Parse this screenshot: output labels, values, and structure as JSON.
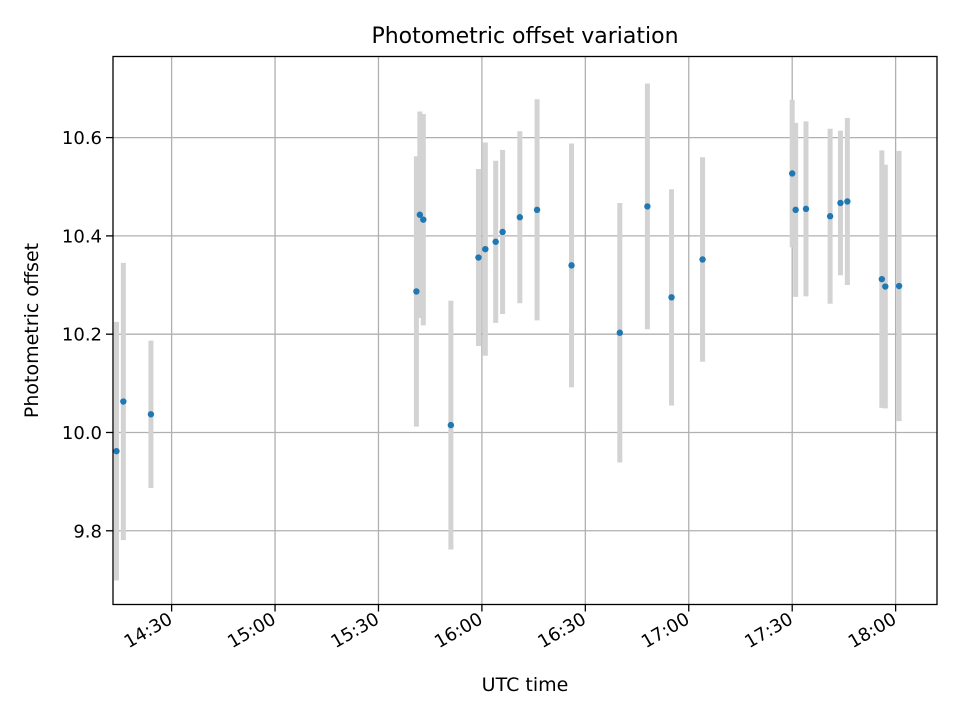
{
  "chart_data": {
    "type": "scatter",
    "title": "Photometric offset variation",
    "xlabel": "UTC time",
    "ylabel": "Photometric offset",
    "grid": true,
    "x_tick_labels": [
      "14:30",
      "15:00",
      "15:30",
      "16:00",
      "16:30",
      "17:00",
      "17:30",
      "18:00"
    ],
    "y_tick_labels": [
      "9.8",
      "10.0",
      "10.2",
      "10.4",
      "10.6"
    ],
    "xlim": [
      "14:13",
      "18:12"
    ],
    "ylim": [
      9.65,
      10.765
    ],
    "colors": {
      "point": "#1f77b4",
      "errorbar": "#d3d3d3",
      "grid": "#b0b0b0"
    },
    "series": [
      {
        "points": [
          {
            "x": "14:14",
            "y": 9.962,
            "yerr": 0.263
          },
          {
            "x": "14:16",
            "y": 10.063,
            "yerr": 0.282
          },
          {
            "x": "14:24",
            "y": 10.037,
            "yerr": 0.15
          },
          {
            "x": "15:41",
            "y": 10.287,
            "yerr": 0.275
          },
          {
            "x": "15:42",
            "y": 10.443,
            "yerr": 0.21
          },
          {
            "x": "15:43",
            "y": 10.433,
            "yerr": 0.215
          },
          {
            "x": "15:51",
            "y": 10.015,
            "yerr": 0.253
          },
          {
            "x": "15:59",
            "y": 10.356,
            "yerr": 0.18
          },
          {
            "x": "16:01",
            "y": 10.373,
            "yerr": 0.217
          },
          {
            "x": "16:04",
            "y": 10.388,
            "yerr": 0.165
          },
          {
            "x": "16:06",
            "y": 10.408,
            "yerr": 0.167
          },
          {
            "x": "16:11",
            "y": 10.438,
            "yerr": 0.175
          },
          {
            "x": "16:16",
            "y": 10.453,
            "yerr": 0.225
          },
          {
            "x": "16:26",
            "y": 10.34,
            "yerr": 0.248
          },
          {
            "x": "16:40",
            "y": 10.203,
            "yerr": 0.264
          },
          {
            "x": "16:48",
            "y": 10.46,
            "yerr": 0.25
          },
          {
            "x": "16:55",
            "y": 10.275,
            "yerr": 0.22
          },
          {
            "x": "17:04",
            "y": 10.352,
            "yerr": 0.208
          },
          {
            "x": "17:30",
            "y": 10.527,
            "yerr": 0.15
          },
          {
            "x": "17:31",
            "y": 10.453,
            "yerr": 0.177
          },
          {
            "x": "17:34",
            "y": 10.455,
            "yerr": 0.178
          },
          {
            "x": "17:41",
            "y": 10.44,
            "yerr": 0.178
          },
          {
            "x": "17:44",
            "y": 10.467,
            "yerr": 0.147
          },
          {
            "x": "17:46",
            "y": 10.47,
            "yerr": 0.17
          },
          {
            "x": "17:56",
            "y": 10.312,
            "yerr": 0.262
          },
          {
            "x": "17:57",
            "y": 10.297,
            "yerr": 0.248
          },
          {
            "x": "18:01",
            "y": 10.298,
            "yerr": 0.275
          }
        ]
      }
    ]
  }
}
